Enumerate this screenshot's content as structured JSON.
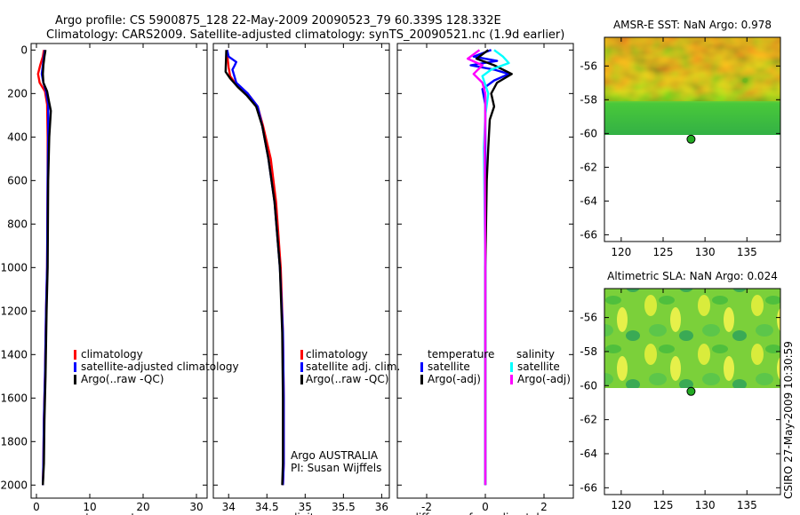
{
  "header": {
    "line1": "Argo profile: CS 5900875_128 22-May-2009 20090523_79 60.339S 128.332E",
    "line2": "Climatology: CARS2009. Satellite-adjusted climatology: synTS_20090521.nc (1.9d earlier)"
  },
  "footer_stamp": "CSIRO 27-May-2009 10:30:59",
  "colors": {
    "climatology": "#ff0000",
    "satellite": "#0000ff",
    "argo": "#000000",
    "satellite_sal": "#00ffff",
    "argo_sal": "#ff00ff",
    "marker": "#22aa22"
  },
  "chart_data": [
    {
      "type": "line",
      "id": "temperature",
      "xlabel": "temperature",
      "ylabel": "",
      "xlim": [
        -1,
        32
      ],
      "ylim": [
        2060,
        -30
      ],
      "xticks": [
        0,
        10,
        20,
        30
      ],
      "yticks": [
        0,
        200,
        400,
        600,
        800,
        1000,
        1200,
        1400,
        1600,
        1800,
        2000
      ],
      "legend": {
        "placement": "lower-middle",
        "entries": [
          {
            "label": "climatology",
            "color": "#ff0000"
          },
          {
            "label": "satellite-adjusted climatology",
            "color": "#0000ff"
          },
          {
            "label": "Argo(..raw -QC)",
            "color": "#000000"
          }
        ]
      },
      "series": [
        {
          "name": "climatology",
          "color": "#ff0000",
          "x": [
            1.4,
            1.2,
            0.7,
            0.3,
            0.6,
            1.6,
            2.0,
            2.1,
            2.1,
            2.0,
            1.8,
            1.6,
            1.4,
            1.3,
            1.2
          ],
          "depth": [
            0,
            30,
            70,
            110,
            150,
            190,
            250,
            400,
            600,
            1000,
            1200,
            1500,
            1700,
            1900,
            2000
          ]
        },
        {
          "name": "satellite-adjusted climatology",
          "color": "#0000ff",
          "x": [
            1.6,
            1.4,
            1.2,
            1.0,
            1.3,
            1.8,
            2.2,
            2.2,
            2.1,
            2.0,
            1.8,
            1.6,
            1.4,
            1.3,
            1.2
          ],
          "depth": [
            0,
            30,
            70,
            110,
            150,
            190,
            250,
            400,
            600,
            1000,
            1200,
            1500,
            1700,
            1900,
            2000
          ]
        },
        {
          "name": "Argo(..raw -QC)",
          "color": "#000000",
          "x": [
            1.7,
            1.5,
            1.3,
            1.2,
            1.3,
            2.0,
            2.3,
            2.7,
            2.4,
            2.2,
            2.1,
            1.9,
            1.7,
            1.5,
            1.4,
            1.2
          ],
          "depth": [
            0,
            30,
            70,
            110,
            150,
            190,
            230,
            280,
            400,
            600,
            1000,
            1200,
            1500,
            1700,
            1900,
            2000
          ]
        }
      ]
    },
    {
      "type": "line",
      "id": "salinity",
      "xlabel": "salinity",
      "ylabel": "",
      "xlim": [
        33.8,
        36.1
      ],
      "ylim": [
        2060,
        -30
      ],
      "xticks": [
        34,
        34.5,
        35,
        35.5,
        36
      ],
      "annotations": [
        "Argo AUSTRALIA",
        "PI: Susan Wijffels"
      ],
      "legend": {
        "placement": "lower-right",
        "entries": [
          {
            "label": "climatology",
            "color": "#ff0000"
          },
          {
            "label": "satellite adj. clim.",
            "color": "#0000ff"
          },
          {
            "label": "Argo(..raw -QC)",
            "color": "#000000"
          }
        ]
      },
      "series": [
        {
          "name": "climatology",
          "color": "#ff0000",
          "x": [
            33.98,
            33.99,
            34.0,
            34.02,
            34.1,
            34.25,
            34.38,
            34.45,
            34.55,
            34.62,
            34.68,
            34.71,
            34.72,
            34.72,
            34.71
          ],
          "depth": [
            0,
            50,
            80,
            120,
            160,
            200,
            260,
            350,
            500,
            700,
            1000,
            1300,
            1600,
            1900,
            2000
          ]
        },
        {
          "name": "satellite adj. clim.",
          "color": "#0000ff",
          "x": [
            33.98,
            34.0,
            34.1,
            34.08,
            34.05,
            34.1,
            34.25,
            34.38,
            34.44,
            34.52,
            34.6,
            34.67,
            34.71,
            34.72,
            34.72,
            34.71
          ],
          "depth": [
            0,
            30,
            55,
            70,
            90,
            150,
            200,
            260,
            350,
            500,
            700,
            1000,
            1300,
            1600,
            1900,
            2000
          ]
        },
        {
          "name": "Argo(..raw -QC)",
          "color": "#000000",
          "x": [
            33.97,
            33.96,
            34.02,
            34.12,
            34.24,
            34.36,
            34.44,
            34.52,
            34.6,
            34.67,
            34.7,
            34.71,
            34.71,
            34.7
          ],
          "depth": [
            0,
            100,
            130,
            170,
            210,
            260,
            350,
            500,
            700,
            1000,
            1300,
            1600,
            1900,
            2000
          ]
        }
      ]
    },
    {
      "type": "line",
      "id": "difference",
      "xlabel": "difference from climatology",
      "ylabel": "",
      "xlim": [
        -3,
        3
      ],
      "ylim": [
        2060,
        -30
      ],
      "xticks": [
        -2,
        0,
        2
      ],
      "legend": {
        "placement": "lower",
        "groups": [
          "temperature",
          "salinity"
        ],
        "entries": [
          {
            "label": "satellite",
            "group": "temperature",
            "color": "#0000ff"
          },
          {
            "label": "Argo(-adj)",
            "group": "temperature",
            "color": "#000000"
          },
          {
            "label": "satellite",
            "group": "salinity",
            "color": "#00ffff"
          },
          {
            "label": "Argo(-adj)",
            "group": "salinity",
            "color": "#ff00ff"
          }
        ]
      },
      "series": [
        {
          "name": "temperature satellite",
          "color": "#0000ff",
          "x": [
            0.2,
            -0.4,
            0.4,
            -0.5,
            0.3,
            0.8,
            0.3,
            -0.1,
            0.0,
            0.0,
            0.0,
            0.0
          ],
          "depth": [
            0,
            30,
            50,
            70,
            90,
            110,
            140,
            180,
            250,
            400,
            1000,
            2000
          ]
        },
        {
          "name": "temperature Argo(-adj)",
          "color": "#000000",
          "x": [
            0.1,
            -0.3,
            0.3,
            0.9,
            0.4,
            0.2,
            0.3,
            0.15,
            0.1,
            0.05,
            0.0,
            0.0
          ],
          "depth": [
            0,
            40,
            70,
            110,
            150,
            200,
            260,
            320,
            450,
            600,
            1000,
            2000
          ]
        },
        {
          "name": "salinity satellite",
          "color": "#00ffff",
          "x": [
            0.3,
            0.6,
            0.8,
            0.2,
            -0.1,
            0.1,
            0.0,
            -0.05,
            0.0,
            0.0
          ],
          "depth": [
            0,
            30,
            60,
            90,
            120,
            200,
            300,
            450,
            1000,
            2000
          ]
        },
        {
          "name": "salinity Argo(-adj)",
          "color": "#ff00ff",
          "x": [
            -0.2,
            -0.6,
            -0.1,
            -0.4,
            -0.1,
            0.0,
            0.0,
            -0.02,
            0.0,
            0.0
          ],
          "depth": [
            0,
            40,
            70,
            110,
            150,
            200,
            300,
            450,
            1000,
            2000
          ]
        }
      ]
    },
    {
      "type": "heatmap",
      "id": "sst_map",
      "title": "AMSR-E SST: NaN Argo: 0.978",
      "xlim": [
        118,
        139
      ],
      "ylim": [
        -66.4,
        -54.3
      ],
      "data_lat_range": [
        -60.1,
        -54.3
      ],
      "xticks": [
        120,
        125,
        130,
        135
      ],
      "yticks": [
        -56,
        -58,
        -60,
        -62,
        -64,
        -66
      ],
      "float_position": {
        "lon": 128.332,
        "lat": -60.339
      }
    },
    {
      "type": "heatmap",
      "id": "sla_map",
      "title": "Altimetric SLA: NaN Argo: 0.024",
      "xlim": [
        118,
        139
      ],
      "ylim": [
        -66.4,
        -54.3
      ],
      "data_lat_range": [
        -60.1,
        -54.3
      ],
      "xticks": [
        120,
        125,
        130,
        135
      ],
      "yticks": [
        -56,
        -58,
        -60,
        -62,
        -64,
        -66
      ],
      "float_position": {
        "lon": 128.332,
        "lat": -60.339
      }
    }
  ]
}
